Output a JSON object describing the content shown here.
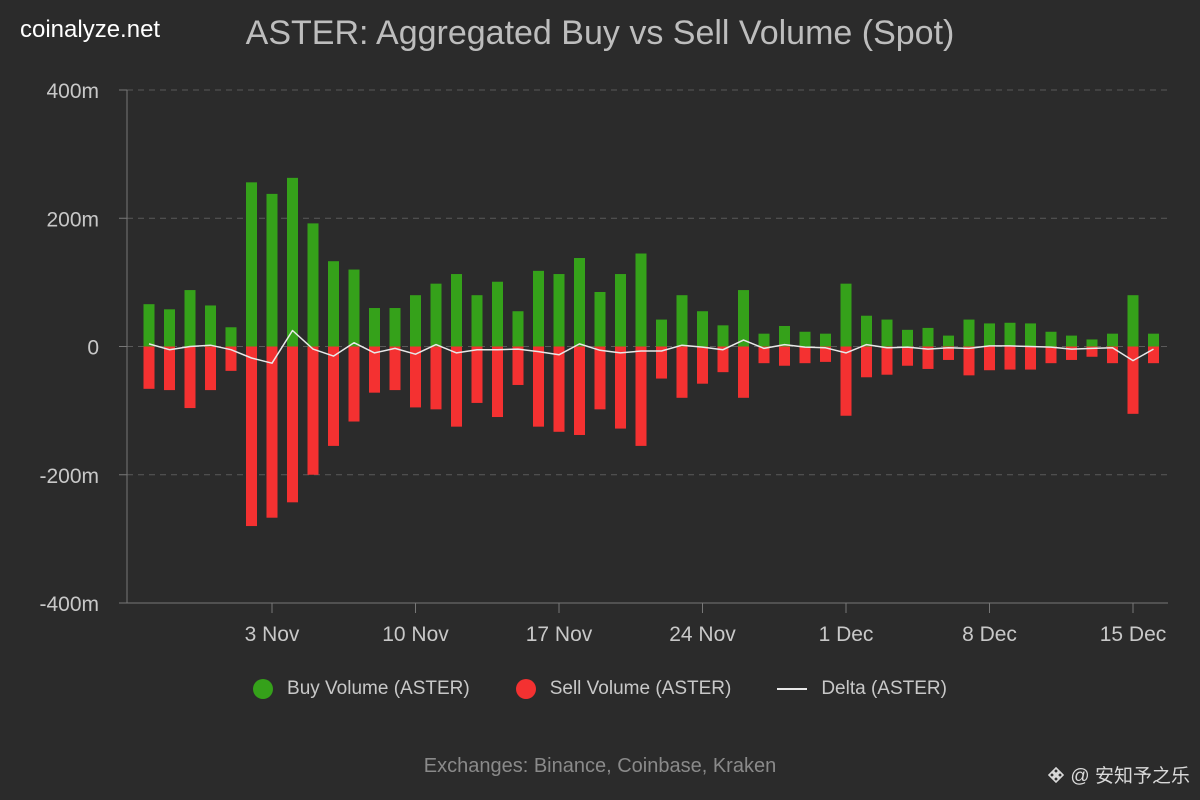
{
  "brand": "coinalyze.net",
  "watermark": "@ 安知予之乐",
  "colors": {
    "background": "#2b2b2b",
    "buy": "#35a11a",
    "sell": "#f43131",
    "delta": "#e8e8e8",
    "grid": "#5a5a5a",
    "axis": "#777777"
  },
  "chart_data": {
    "type": "bar",
    "title": "ASTER: Aggregated Buy vs Sell Volume (Spot)",
    "xlabel": "",
    "ylabel": "",
    "ylim": [
      -400,
      400
    ],
    "y_unit": "m",
    "y_ticks": [
      400,
      200,
      0,
      -200,
      -400
    ],
    "y_tick_labels": [
      "400m",
      "200m",
      "0",
      "-200m",
      "-400m"
    ],
    "x_tick_labels": [
      {
        "index": 6,
        "label": "3 Nov"
      },
      {
        "index": 13,
        "label": "10 Nov"
      },
      {
        "index": 20,
        "label": "17 Nov"
      },
      {
        "index": 27,
        "label": "24 Nov"
      },
      {
        "index": 34,
        "label": "1 Dec"
      },
      {
        "index": 41,
        "label": "8 Dec"
      },
      {
        "index": 48,
        "label": "15 Dec"
      }
    ],
    "categories": [
      "28 Oct",
      "29 Oct",
      "30 Oct",
      "31 Oct",
      "1 Nov",
      "2 Nov",
      "3 Nov",
      "4 Nov",
      "5 Nov",
      "6 Nov",
      "7 Nov",
      "8 Nov",
      "9 Nov",
      "10 Nov",
      "11 Nov",
      "12 Nov",
      "13 Nov",
      "14 Nov",
      "15 Nov",
      "16 Nov",
      "17 Nov",
      "18 Nov",
      "19 Nov",
      "20 Nov",
      "21 Nov",
      "22 Nov",
      "23 Nov",
      "24 Nov",
      "25 Nov",
      "26 Nov",
      "27 Nov",
      "28 Nov",
      "29 Nov",
      "30 Nov",
      "1 Dec",
      "2 Dec",
      "3 Dec",
      "4 Dec",
      "5 Dec",
      "6 Dec",
      "7 Dec",
      "8 Dec",
      "9 Dec",
      "10 Dec",
      "11 Dec",
      "12 Dec",
      "13 Dec",
      "14 Dec",
      "15 Dec",
      "16 Dec"
    ],
    "series": [
      {
        "name": "Buy Volume (ASTER)",
        "values": [
          66,
          58,
          88,
          64,
          30,
          256,
          238,
          263,
          192,
          133,
          120,
          60,
          60,
          80,
          98,
          113,
          80,
          101,
          55,
          118,
          113,
          138,
          85,
          113,
          145,
          42,
          80,
          55,
          33,
          88,
          20,
          32,
          23,
          20,
          98,
          48,
          42,
          26,
          29,
          17,
          42,
          36,
          37,
          36,
          23,
          17,
          11,
          20,
          80,
          20
        ]
      },
      {
        "name": "Sell Volume (ASTER)",
        "values": [
          -66,
          -68,
          -96,
          -68,
          -38,
          -280,
          -267,
          -243,
          -200,
          -155,
          -117,
          -72,
          -68,
          -95,
          -98,
          -125,
          -88,
          -110,
          -60,
          -125,
          -133,
          -138,
          -98,
          -128,
          -155,
          -50,
          -80,
          -58,
          -40,
          -80,
          -26,
          -30,
          -26,
          -24,
          -108,
          -48,
          -44,
          -30,
          -35,
          -21,
          -45,
          -37,
          -36,
          -36,
          -26,
          -21,
          -16,
          -26,
          -105,
          -26
        ]
      },
      {
        "name": "Delta (ASTER)",
        "values": [
          4,
          -5,
          0,
          2,
          -5,
          -18,
          -26,
          25,
          -4,
          -15,
          6,
          -10,
          -3,
          -12,
          3,
          -10,
          -5,
          -5,
          -4,
          -8,
          -13,
          4,
          -6,
          -10,
          -7,
          -7,
          2,
          -1,
          -5,
          10,
          -3,
          3,
          -1,
          -2,
          -10,
          3,
          -2,
          -1,
          -4,
          -2,
          -3,
          1,
          1,
          0,
          -1,
          -4,
          -3,
          -2,
          -22,
          -4
        ]
      }
    ],
    "legend": "bottom",
    "grid": true,
    "footer": "Exchanges: Binance, Coinbase, Kraken"
  }
}
